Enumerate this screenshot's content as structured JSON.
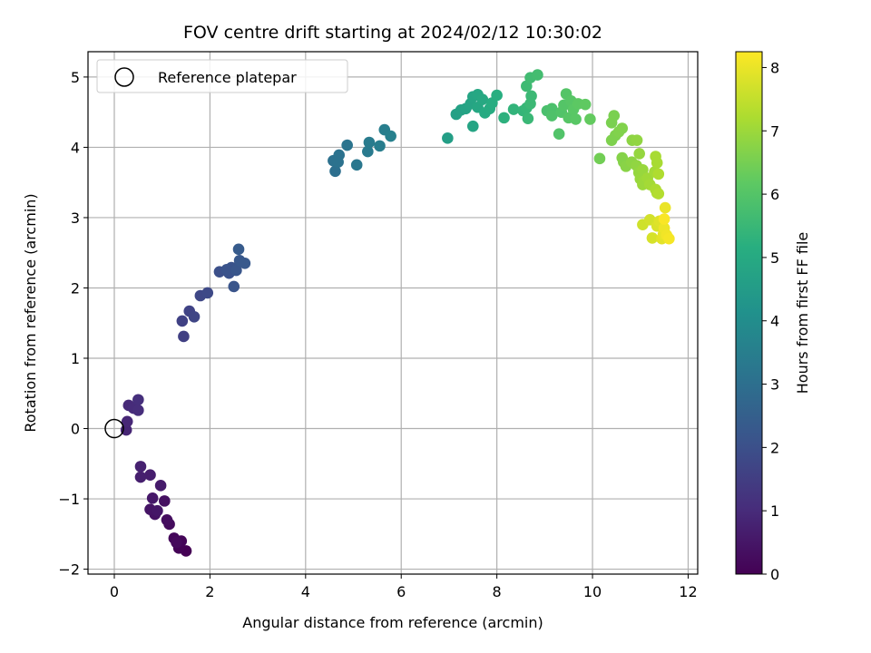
{
  "chart_data": {
    "type": "scatter",
    "title": "FOV centre drift starting at 2024/02/12 10:30:02",
    "xlabel": "Angular distance from reference (arcmin)",
    "ylabel": "Rotation from reference (arcmin)",
    "xlim": [
      -0.55,
      12.2
    ],
    "ylim": [
      -2.07,
      5.36
    ],
    "xticks": [
      0,
      2,
      4,
      6,
      8,
      10,
      12
    ],
    "yticks": [
      -2,
      -1,
      0,
      1,
      2,
      3,
      4,
      5
    ],
    "xtick_labels": [
      "0",
      "2",
      "4",
      "6",
      "8",
      "10",
      "12"
    ],
    "ytick_labels": [
      "−2",
      "−1",
      "0",
      "1",
      "2",
      "3",
      "4",
      "5"
    ],
    "grid": true,
    "legend": {
      "placement": "top-left",
      "entries": [
        {
          "label": "Reference platepar",
          "marker": "open-circle"
        }
      ]
    },
    "reference": {
      "x": 0,
      "y": 0
    },
    "colorbar": {
      "label": "Hours from first FF file",
      "range": [
        0,
        8.25
      ],
      "ticks": [
        0,
        1,
        2,
        3,
        4,
        5,
        6,
        7,
        8
      ],
      "tick_labels": [
        "0",
        "1",
        "2",
        "3",
        "4",
        "5",
        "6",
        "7",
        "8"
      ],
      "colormap": "viridis"
    },
    "series": [
      {
        "points": [
          {
            "x": 1.5,
            "y": -1.74,
            "h": 0.0
          },
          {
            "x": 1.35,
            "y": -1.7,
            "h": 0.05
          },
          {
            "x": 1.4,
            "y": -1.6,
            "h": 0.1
          },
          {
            "x": 1.25,
            "y": -1.56,
            "h": 0.15
          },
          {
            "x": 1.3,
            "y": -1.62,
            "h": 0.2
          },
          {
            "x": 1.15,
            "y": -1.36,
            "h": 0.25
          },
          {
            "x": 1.1,
            "y": -1.3,
            "h": 0.3
          },
          {
            "x": 1.05,
            "y": -1.03,
            "h": 0.35
          },
          {
            "x": 0.85,
            "y": -1.22,
            "h": 0.4
          },
          {
            "x": 0.75,
            "y": -1.15,
            "h": 0.45
          },
          {
            "x": 0.9,
            "y": -1.17,
            "h": 0.5
          },
          {
            "x": 0.8,
            "y": -0.99,
            "h": 0.55
          },
          {
            "x": 0.97,
            "y": -0.81,
            "h": 0.6
          },
          {
            "x": 0.75,
            "y": -0.66,
            "h": 0.65
          },
          {
            "x": 0.55,
            "y": -0.69,
            "h": 0.7
          },
          {
            "x": 0.55,
            "y": -0.54,
            "h": 0.75
          },
          {
            "x": 0.25,
            "y": -0.02,
            "h": 0.85
          },
          {
            "x": 0.27,
            "y": 0.1,
            "h": 0.9
          },
          {
            "x": 0.3,
            "y": 0.33,
            "h": 0.95
          },
          {
            "x": 0.4,
            "y": 0.29,
            "h": 1.0
          },
          {
            "x": 0.5,
            "y": 0.26,
            "h": 1.05
          },
          {
            "x": 0.5,
            "y": 0.41,
            "h": 1.1
          },
          {
            "x": 1.45,
            "y": 1.31,
            "h": 1.55
          },
          {
            "x": 1.42,
            "y": 1.53,
            "h": 1.6
          },
          {
            "x": 1.57,
            "y": 1.67,
            "h": 1.65
          },
          {
            "x": 1.67,
            "y": 1.59,
            "h": 1.7
          },
          {
            "x": 1.8,
            "y": 1.89,
            "h": 1.75
          },
          {
            "x": 1.95,
            "y": 1.93,
            "h": 1.8
          },
          {
            "x": 2.2,
            "y": 2.23,
            "h": 2.0
          },
          {
            "x": 2.4,
            "y": 2.21,
            "h": 2.05
          },
          {
            "x": 2.45,
            "y": 2.29,
            "h": 2.1
          },
          {
            "x": 2.35,
            "y": 2.26,
            "h": 2.1
          },
          {
            "x": 2.5,
            "y": 2.02,
            "h": 2.15
          },
          {
            "x": 2.55,
            "y": 2.25,
            "h": 2.2
          },
          {
            "x": 2.62,
            "y": 2.39,
            "h": 2.25
          },
          {
            "x": 2.73,
            "y": 2.35,
            "h": 2.3
          },
          {
            "x": 2.6,
            "y": 2.55,
            "h": 2.35
          },
          {
            "x": 4.62,
            "y": 3.66,
            "h": 3.0
          },
          {
            "x": 4.58,
            "y": 3.81,
            "h": 3.05
          },
          {
            "x": 4.7,
            "y": 3.89,
            "h": 3.1
          },
          {
            "x": 4.68,
            "y": 3.79,
            "h": 3.1
          },
          {
            "x": 4.87,
            "y": 4.03,
            "h": 3.15
          },
          {
            "x": 5.07,
            "y": 3.75,
            "h": 3.25
          },
          {
            "x": 5.3,
            "y": 3.94,
            "h": 3.35
          },
          {
            "x": 5.33,
            "y": 4.07,
            "h": 3.4
          },
          {
            "x": 5.55,
            "y": 4.02,
            "h": 3.45
          },
          {
            "x": 5.65,
            "y": 4.25,
            "h": 3.5
          },
          {
            "x": 5.78,
            "y": 4.16,
            "h": 3.55
          },
          {
            "x": 6.97,
            "y": 4.13,
            "h": 4.6
          },
          {
            "x": 7.15,
            "y": 4.47,
            "h": 4.65
          },
          {
            "x": 7.25,
            "y": 4.53,
            "h": 4.7
          },
          {
            "x": 7.35,
            "y": 4.55,
            "h": 4.75
          },
          {
            "x": 7.5,
            "y": 4.3,
            "h": 4.8
          },
          {
            "x": 7.45,
            "y": 4.62,
            "h": 4.8
          },
          {
            "x": 7.5,
            "y": 4.72,
            "h": 4.85
          },
          {
            "x": 7.6,
            "y": 4.57,
            "h": 4.9
          },
          {
            "x": 7.6,
            "y": 4.75,
            "h": 4.9
          },
          {
            "x": 7.7,
            "y": 4.68,
            "h": 4.95
          },
          {
            "x": 7.75,
            "y": 4.49,
            "h": 5.0
          },
          {
            "x": 7.85,
            "y": 4.55,
            "h": 5.05
          },
          {
            "x": 7.9,
            "y": 4.63,
            "h": 5.1
          },
          {
            "x": 8.0,
            "y": 4.74,
            "h": 5.15
          },
          {
            "x": 8.15,
            "y": 4.42,
            "h": 5.25
          },
          {
            "x": 8.35,
            "y": 4.54,
            "h": 5.35
          },
          {
            "x": 8.55,
            "y": 4.52,
            "h": 5.4
          },
          {
            "x": 8.62,
            "y": 4.56,
            "h": 5.45
          },
          {
            "x": 8.65,
            "y": 4.41,
            "h": 5.5
          },
          {
            "x": 8.7,
            "y": 4.62,
            "h": 5.55
          },
          {
            "x": 8.72,
            "y": 4.73,
            "h": 5.55
          },
          {
            "x": 8.62,
            "y": 4.87,
            "h": 5.6
          },
          {
            "x": 8.7,
            "y": 4.99,
            "h": 5.65
          },
          {
            "x": 8.85,
            "y": 5.03,
            "h": 5.7
          },
          {
            "x": 9.05,
            "y": 4.52,
            "h": 5.8
          },
          {
            "x": 9.15,
            "y": 4.55,
            "h": 5.85
          },
          {
            "x": 9.15,
            "y": 4.45,
            "h": 5.9
          },
          {
            "x": 9.3,
            "y": 4.19,
            "h": 5.95
          },
          {
            "x": 9.35,
            "y": 4.5,
            "h": 5.95
          },
          {
            "x": 9.45,
            "y": 4.76,
            "h": 6.0
          },
          {
            "x": 9.4,
            "y": 4.6,
            "h": 6.0
          },
          {
            "x": 9.5,
            "y": 4.42,
            "h": 6.05
          },
          {
            "x": 9.55,
            "y": 4.66,
            "h": 6.05
          },
          {
            "x": 9.6,
            "y": 4.54,
            "h": 6.1
          },
          {
            "x": 9.65,
            "y": 4.4,
            "h": 6.1
          },
          {
            "x": 9.7,
            "y": 4.62,
            "h": 6.15
          },
          {
            "x": 9.85,
            "y": 4.61,
            "h": 6.2
          },
          {
            "x": 9.95,
            "y": 4.4,
            "h": 6.25
          },
          {
            "x": 10.15,
            "y": 3.84,
            "h": 6.45
          },
          {
            "x": 10.4,
            "y": 4.35,
            "h": 6.55
          },
          {
            "x": 10.45,
            "y": 4.45,
            "h": 6.55
          },
          {
            "x": 10.4,
            "y": 4.1,
            "h": 6.6
          },
          {
            "x": 10.48,
            "y": 4.17,
            "h": 6.6
          },
          {
            "x": 10.55,
            "y": 4.22,
            "h": 6.65
          },
          {
            "x": 10.62,
            "y": 4.27,
            "h": 6.65
          },
          {
            "x": 10.62,
            "y": 3.85,
            "h": 6.7
          },
          {
            "x": 10.65,
            "y": 3.79,
            "h": 6.7
          },
          {
            "x": 10.7,
            "y": 3.73,
            "h": 6.75
          },
          {
            "x": 10.82,
            "y": 3.79,
            "h": 6.8
          },
          {
            "x": 10.83,
            "y": 4.1,
            "h": 6.8
          },
          {
            "x": 10.93,
            "y": 4.1,
            "h": 6.85
          },
          {
            "x": 10.92,
            "y": 3.74,
            "h": 6.85
          },
          {
            "x": 10.98,
            "y": 3.91,
            "h": 6.9
          },
          {
            "x": 10.97,
            "y": 3.64,
            "h": 6.9
          },
          {
            "x": 11.0,
            "y": 3.55,
            "h": 6.95
          },
          {
            "x": 11.05,
            "y": 3.68,
            "h": 6.95
          },
          {
            "x": 11.08,
            "y": 3.52,
            "h": 7.0
          },
          {
            "x": 11.05,
            "y": 3.47,
            "h": 7.0
          },
          {
            "x": 11.15,
            "y": 3.56,
            "h": 7.05
          },
          {
            "x": 11.2,
            "y": 3.47,
            "h": 7.1
          },
          {
            "x": 11.3,
            "y": 3.65,
            "h": 7.1
          },
          {
            "x": 11.32,
            "y": 3.87,
            "h": 7.15
          },
          {
            "x": 11.35,
            "y": 3.78,
            "h": 7.15
          },
          {
            "x": 11.35,
            "y": 3.35,
            "h": 7.2
          },
          {
            "x": 11.32,
            "y": 3.4,
            "h": 7.2
          },
          {
            "x": 11.38,
            "y": 3.62,
            "h": 7.25
          },
          {
            "x": 11.38,
            "y": 3.34,
            "h": 7.3
          },
          {
            "x": 11.05,
            "y": 2.9,
            "h": 7.65
          },
          {
            "x": 11.2,
            "y": 2.97,
            "h": 7.7
          },
          {
            "x": 11.25,
            "y": 2.71,
            "h": 7.75
          },
          {
            "x": 11.35,
            "y": 2.88,
            "h": 7.8
          },
          {
            "x": 11.4,
            "y": 2.95,
            "h": 7.85
          },
          {
            "x": 11.45,
            "y": 2.7,
            "h": 7.9
          },
          {
            "x": 11.48,
            "y": 2.76,
            "h": 7.95
          },
          {
            "x": 11.52,
            "y": 3.14,
            "h": 8.0
          },
          {
            "x": 11.5,
            "y": 2.85,
            "h": 8.05
          },
          {
            "x": 11.55,
            "y": 2.75,
            "h": 8.1
          },
          {
            "x": 11.6,
            "y": 2.7,
            "h": 8.15
          },
          {
            "x": 11.5,
            "y": 2.98,
            "h": 8.2
          }
        ]
      }
    ]
  }
}
